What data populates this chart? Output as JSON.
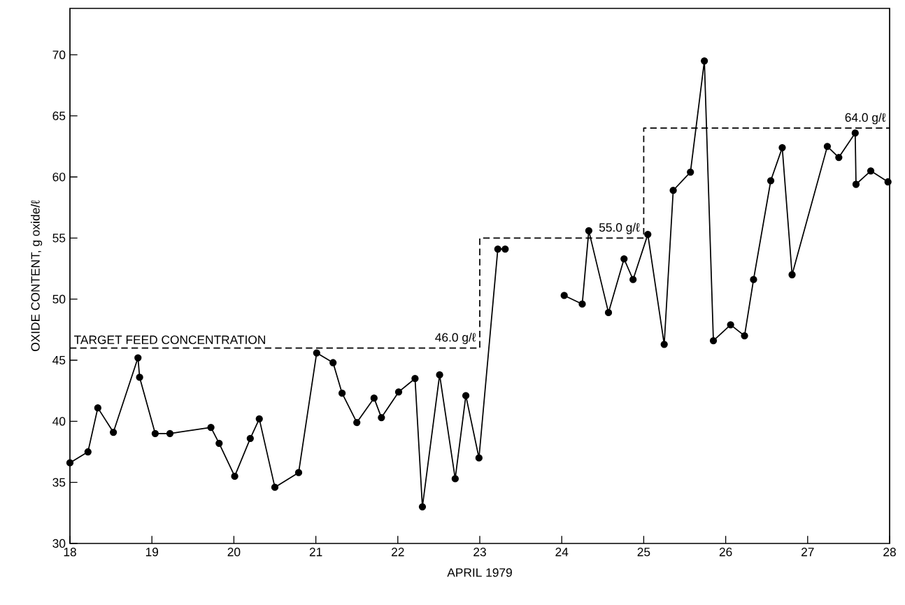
{
  "chart_data": {
    "type": "line",
    "xlabel": "APRIL 1979",
    "ylabel": "OXIDE CONTENT, g oxide/ℓ",
    "xlim": [
      18,
      28
    ],
    "ylim": [
      30,
      73.8
    ],
    "xticks": [
      18,
      19,
      20,
      21,
      22,
      23,
      24,
      25,
      26,
      27,
      28
    ],
    "yticks": [
      30,
      35,
      40,
      45,
      50,
      55,
      60,
      65,
      70
    ],
    "series": [
      {
        "color": "#000000",
        "marker": "circle",
        "x": [
          18.0,
          18.22,
          18.34,
          18.53,
          18.83,
          18.85,
          19.04,
          19.22,
          19.72,
          19.82,
          20.01,
          20.2,
          20.31,
          20.5,
          20.79,
          21.01,
          21.21,
          21.32,
          21.5,
          21.71,
          21.8,
          22.01,
          22.21,
          22.3,
          22.51,
          22.7,
          22.83,
          22.99,
          23.22,
          23.31,
          23.65,
          24.03,
          24.25,
          24.33,
          24.57,
          24.76,
          24.87,
          25.05,
          25.25,
          25.36,
          25.57,
          25.74,
          25.85,
          26.06,
          26.23,
          26.34,
          26.55,
          26.69,
          26.81,
          27.24,
          27.38,
          27.58,
          27.59,
          27.77,
          27.98
        ],
        "values": [
          36.6,
          37.5,
          41.1,
          39.1,
          45.2,
          43.6,
          39.0,
          39.0,
          39.5,
          38.2,
          35.5,
          38.6,
          40.2,
          34.6,
          35.8,
          45.6,
          44.8,
          42.3,
          39.9,
          41.9,
          40.3,
          42.4,
          43.5,
          33.0,
          43.8,
          35.3,
          42.1,
          37.0,
          54.1,
          54.1,
          null,
          50.3,
          49.6,
          55.6,
          48.9,
          53.3,
          51.6,
          55.3,
          46.3,
          58.9,
          60.4,
          69.5,
          46.6,
          47.9,
          47.0,
          51.6,
          59.7,
          62.4,
          52.0,
          62.5,
          61.6,
          63.6,
          59.4,
          60.5,
          59.6
        ]
      },
      {
        "type": "step",
        "color": "#000000",
        "marker": "none",
        "line_style": "dashed",
        "x": [
          18,
          23,
          25,
          28
        ],
        "values": [
          46.0,
          55.0,
          64.0,
          64.0
        ]
      }
    ],
    "annotations": [
      {
        "text": "TARGET FEED CONCENTRATION",
        "x": 18,
        "y": 46.0
      },
      {
        "text": "46.0 g/ℓ",
        "x": 23,
        "y": 46.0
      },
      {
        "text": "55.0 g/ℓ",
        "x": 25,
        "y": 55.0
      },
      {
        "text": "64.0 g/ℓ",
        "x": 28,
        "y": 64.0
      }
    ]
  }
}
